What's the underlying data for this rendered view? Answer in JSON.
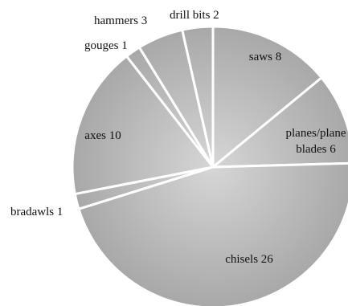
{
  "chart_data": {
    "type": "pie",
    "slices": [
      {
        "label": "saws",
        "value": 8
      },
      {
        "label": "planes/plane blades",
        "value": 6
      },
      {
        "label": "chisels",
        "value": 26
      },
      {
        "label": "bradawls",
        "value": 1
      },
      {
        "label": "axes",
        "value": 10
      },
      {
        "label": "gouges",
        "value": 1
      },
      {
        "label": "hammers",
        "value": 3
      },
      {
        "label": "drill bits",
        "value": 2
      }
    ],
    "data_labels": [
      "saws 8",
      "planes/plane blades 6",
      "chisels 26",
      "bradawls 1",
      "axes 10",
      "gouges 1",
      "hammers 3",
      "drill bits 2"
    ],
    "legend": "none",
    "colors": {
      "fill_center": "#d6d6d6",
      "fill_edge": "#a8a8a8",
      "separator": "#ffffff"
    }
  }
}
